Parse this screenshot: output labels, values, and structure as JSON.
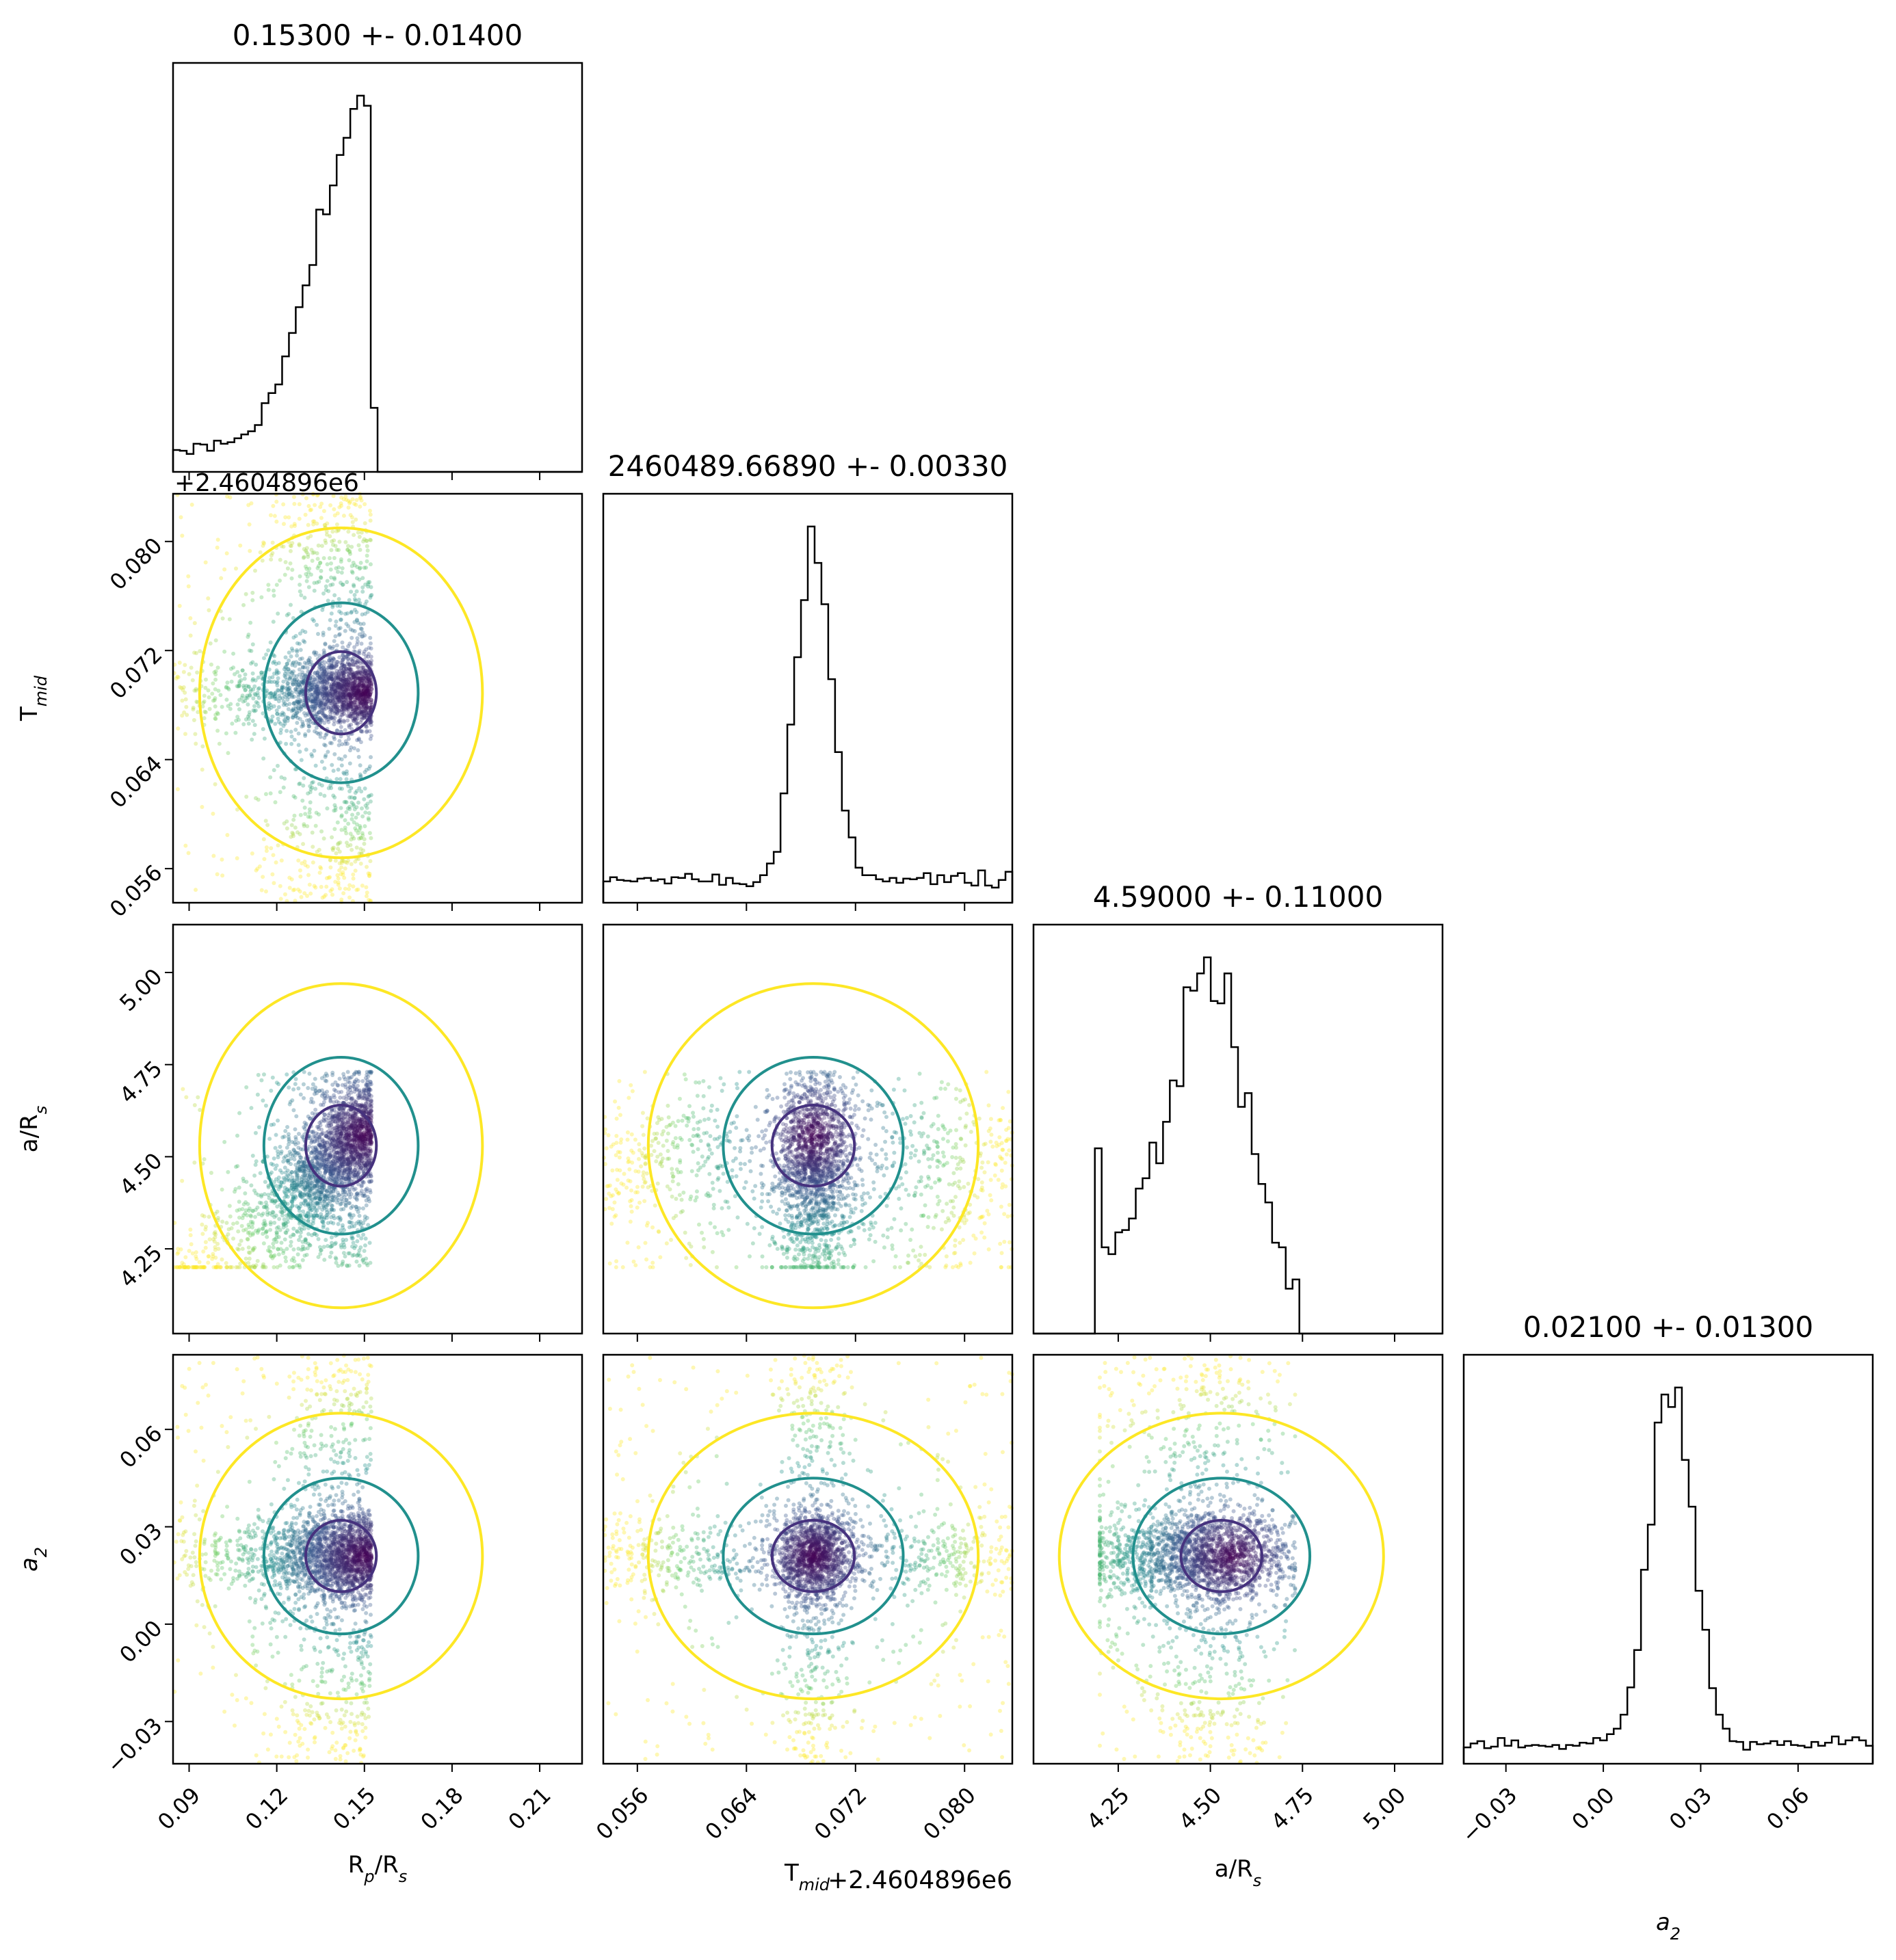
{
  "chart_data": {
    "type": "corner",
    "parameters": [
      {
        "key": "rp",
        "label": "R",
        "label_sub": "p",
        "label_tail": "/R",
        "label_sub2": "s",
        "axis_offset_text": "",
        "range": [
          0.0845,
          0.2245
        ],
        "ticks": [
          0.09,
          0.12,
          0.15,
          0.18,
          0.21
        ],
        "tick_labels": [
          "0.09",
          "0.12",
          "0.15",
          "0.18",
          "0.21"
        ],
        "title": "0.15300 +- 0.01400"
      },
      {
        "key": "tmid",
        "label": "T",
        "label_sub": "mid",
        "label_tail": "",
        "label_sub2": "",
        "axis_offset_text": "+2.4604896e6",
        "range": [
          0.0535,
          0.0835
        ],
        "ticks": [
          0.056,
          0.064,
          0.072,
          0.08
        ],
        "tick_labels": [
          "0.056",
          "0.064",
          "0.072",
          "0.080"
        ],
        "title": "2460489.66890 +- 0.00330"
      },
      {
        "key": "aRs",
        "label": "a/R",
        "label_sub": "s",
        "label_tail": "",
        "label_sub2": "",
        "axis_offset_text": "",
        "range": [
          4.02,
          5.13
        ],
        "ticks": [
          4.25,
          4.5,
          4.75,
          5.0
        ],
        "tick_labels": [
          "4.25",
          "4.50",
          "4.75",
          "5.00"
        ],
        "title": "4.59000 +- 0.11000"
      },
      {
        "key": "a2",
        "label": "a",
        "label_sub": "2",
        "label_tail": "",
        "label_sub2": "",
        "axis_offset_text": "",
        "italic": true,
        "range": [
          -0.043,
          0.083
        ],
        "ticks": [
          -0.03,
          0.0,
          0.03,
          0.06
        ],
        "tick_labels": [
          "−0.03",
          "0.00",
          "0.03",
          "0.06"
        ],
        "title": "0.02100 +- 0.01300"
      }
    ],
    "histograms": {
      "rp": {
        "edges_range": [
          0.0845,
          0.1525
        ],
        "peak_x": 0.1505,
        "shape": "rising-to-edge"
      },
      "tmid": {
        "peak_x": 0.0689,
        "width": 0.0012,
        "floor_fraction": 0.06
      },
      "aRs": {
        "support": [
          4.2,
          4.73
        ],
        "peak_x": 4.56
      },
      "a2": {
        "peak_x": 0.021,
        "width": 0.0045,
        "floor_fraction": 0.03
      }
    },
    "samples_color_map": "viridis",
    "contour_colors": [
      "#46327e",
      "#21908d",
      "#fde725"
    ],
    "grid": false,
    "legend": "none"
  }
}
